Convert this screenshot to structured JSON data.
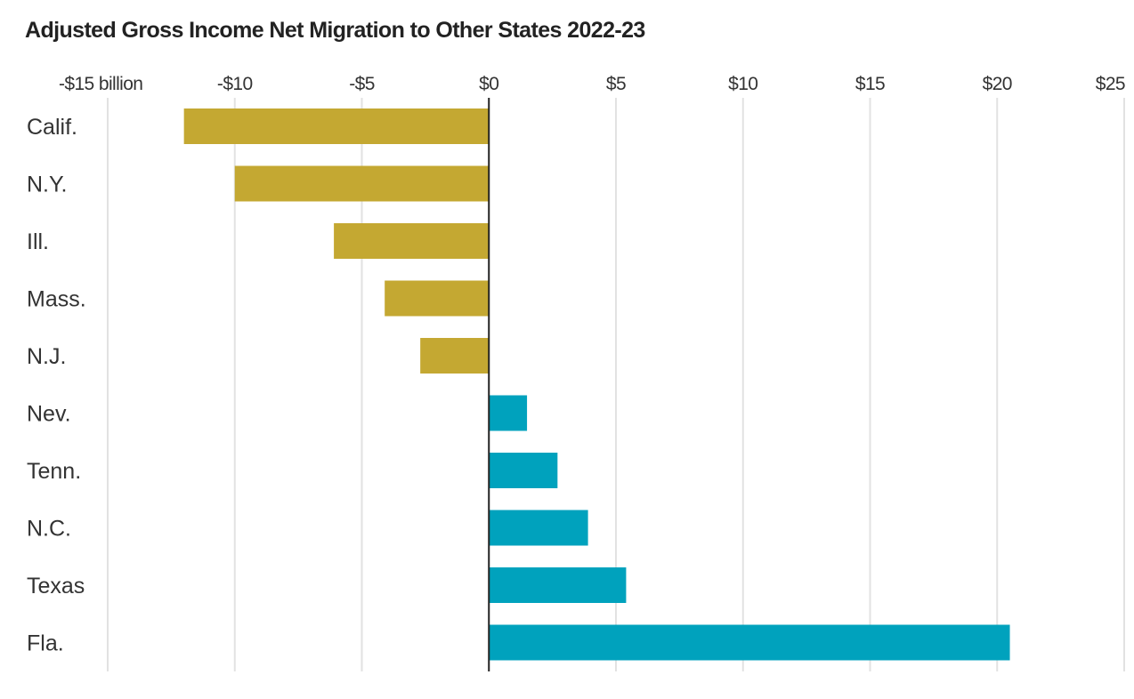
{
  "chart_data": {
    "type": "bar",
    "orientation": "horizontal",
    "title": "Adjusted Gross Income Net Migration to Other States 2022-23",
    "xlabel": "",
    "ylabel": "",
    "unit": "billion dollars",
    "xlim": [
      -15,
      25
    ],
    "ticks": [
      -15,
      -10,
      -5,
      0,
      5,
      10,
      15,
      20,
      25
    ],
    "tick_labels": [
      "-$15 billion",
      "-$10",
      "-$5",
      "$0",
      "$5",
      "$10",
      "$15",
      "$20",
      "$25"
    ],
    "categories": [
      "Calif.",
      "N.Y.",
      "Ill.",
      "Mass.",
      "N.J.",
      "Nev.",
      "Tenn.",
      "N.C.",
      "Texas",
      "Fla."
    ],
    "values": [
      -12.0,
      -10.0,
      -6.1,
      -4.1,
      -2.7,
      1.5,
      2.7,
      3.9,
      5.4,
      20.5
    ],
    "grid": true,
    "colors": {
      "negative": "#c4a832",
      "positive": "#00a2bd",
      "grid": "#e2e2e2",
      "zero_line": "#222222"
    }
  }
}
